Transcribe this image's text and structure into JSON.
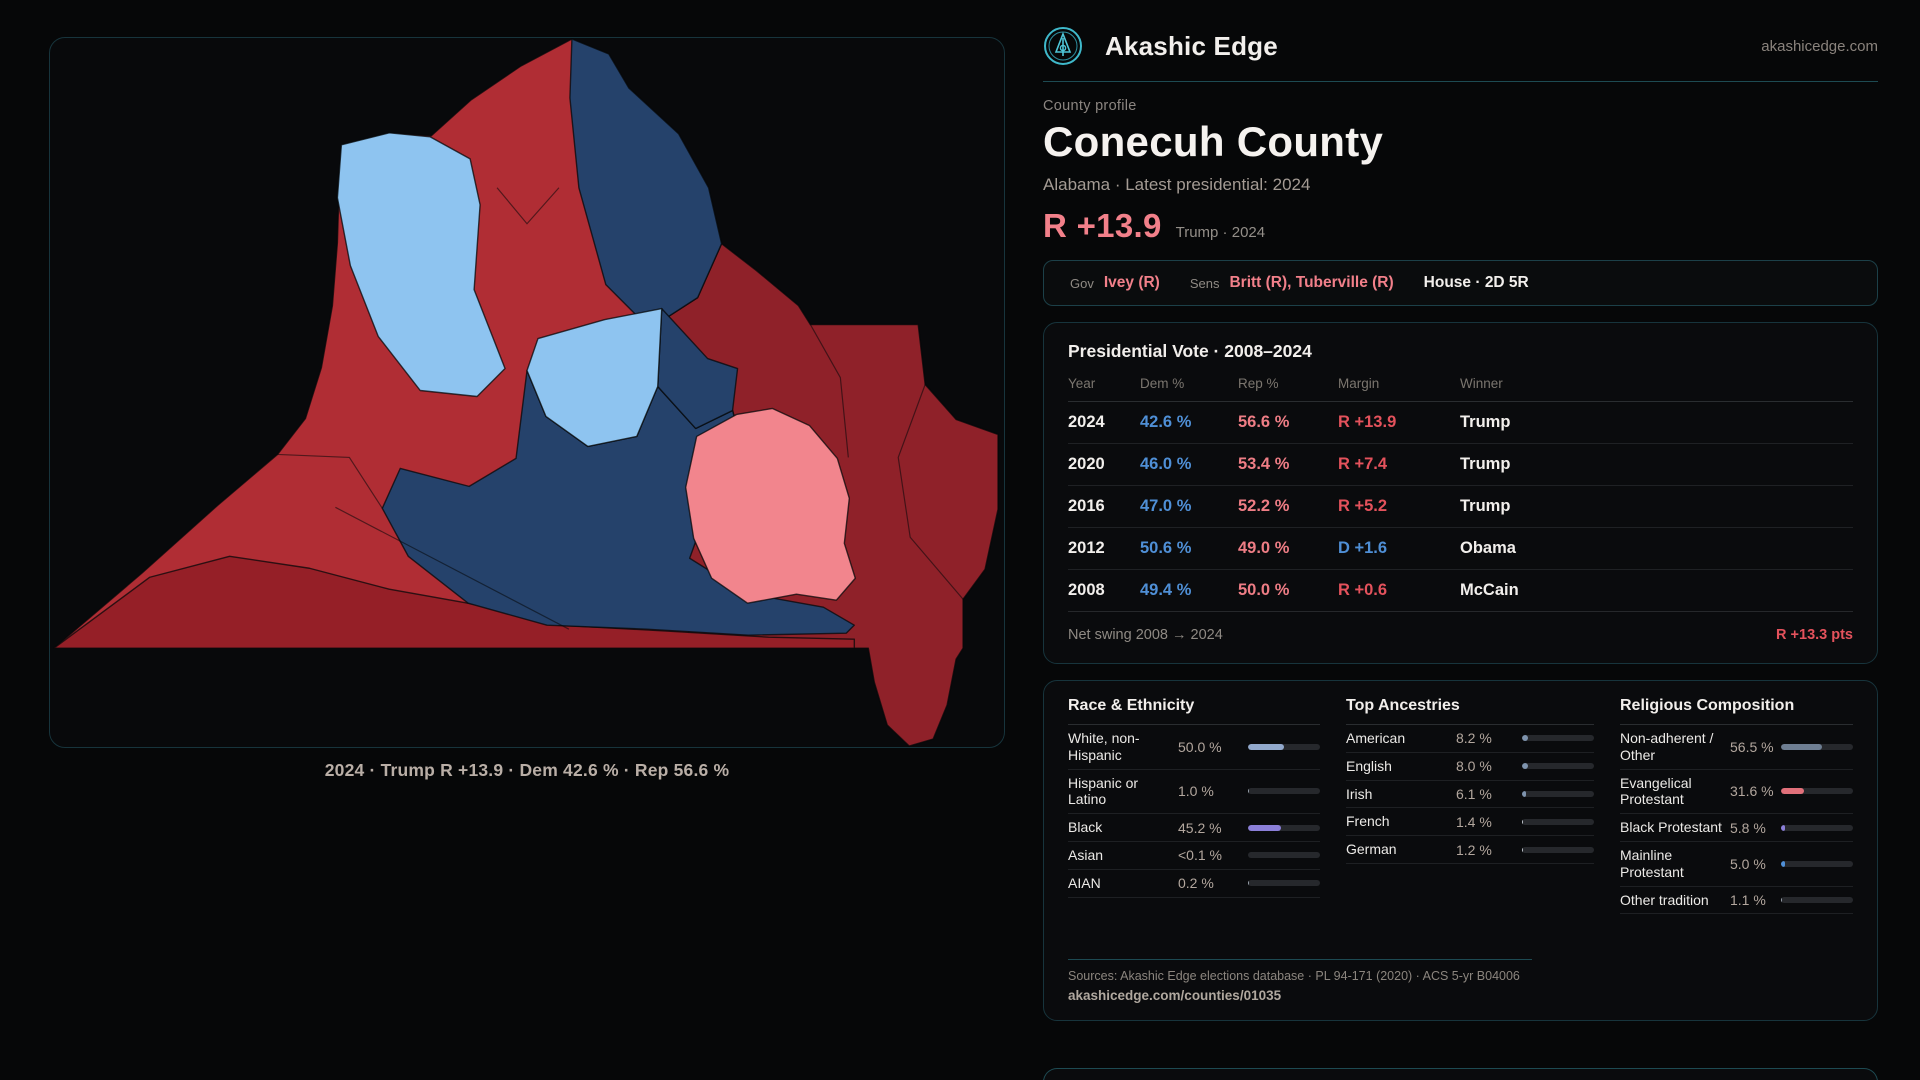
{
  "brand": {
    "name": "Akashic Edge",
    "domain": "akashicedge.com",
    "logo_color": "#49c0d4"
  },
  "profile": {
    "kicker": "County profile",
    "title": "Conecuh County",
    "subtitle": "Alabama · Latest presidential: 2024",
    "headline_margin": "R +13.9",
    "headline_context": "Trump · 2024"
  },
  "officials": {
    "gov_label": "Gov",
    "gov": "Ivey (R)",
    "sens_label": "Sens",
    "sens": "Britt (R), Tuberville (R)",
    "house": "House · 2D 5R"
  },
  "presidential": {
    "title": "Presidential Vote · 2008–2024",
    "columns": [
      "Year",
      "Dem %",
      "Rep %",
      "Margin",
      "Winner"
    ],
    "rows": [
      {
        "year": "2024",
        "dem": "42.6 %",
        "rep": "56.6 %",
        "margin": "R +13.9",
        "margin_party": "R",
        "winner": "Trump"
      },
      {
        "year": "2020",
        "dem": "46.0 %",
        "rep": "53.4 %",
        "margin": "R +7.4",
        "margin_party": "R",
        "winner": "Trump"
      },
      {
        "year": "2016",
        "dem": "47.0 %",
        "rep": "52.2 %",
        "margin": "R +5.2",
        "margin_party": "R",
        "winner": "Trump"
      },
      {
        "year": "2012",
        "dem": "50.6 %",
        "rep": "49.0 %",
        "margin": "D +1.6",
        "margin_party": "D",
        "winner": "Obama"
      },
      {
        "year": "2008",
        "dem": "49.4 %",
        "rep": "50.0 %",
        "margin": "R +0.6",
        "margin_party": "R",
        "winner": "McCain"
      }
    ],
    "net_swing_label": "Net swing 2008 → 2024",
    "net_swing_value": "R +13.3 pts"
  },
  "demographics": {
    "race": {
      "title": "Race & Ethnicity",
      "rows": [
        {
          "label": "White, non-Hispanic",
          "value": "50.0 %",
          "pct": 50.0,
          "color": "#92a9cc"
        },
        {
          "label": "Hispanic or Latino",
          "value": "1.0 %",
          "pct": 1.0,
          "color": "#9aa3ad"
        },
        {
          "label": "Black",
          "value": "45.2 %",
          "pct": 45.2,
          "color": "#8b7fd8"
        },
        {
          "label": "Asian",
          "value": "<0.1 %",
          "pct": 0,
          "color": "#9aa3ad"
        },
        {
          "label": "AIAN",
          "value": "0.2 %",
          "pct": 0.2,
          "color": "#9aa3ad"
        }
      ]
    },
    "ancestry": {
      "title": "Top Ancestries",
      "rows": [
        {
          "label": "American",
          "value": "8.2 %",
          "pct": 8.2,
          "color": "#7e93ad"
        },
        {
          "label": "English",
          "value": "8.0 %",
          "pct": 8.0,
          "color": "#7e93ad"
        },
        {
          "label": "Irish",
          "value": "6.1 %",
          "pct": 6.1,
          "color": "#7e93ad"
        },
        {
          "label": "French",
          "value": "1.4 %",
          "pct": 1.4,
          "color": "#c2c8cf"
        },
        {
          "label": "German",
          "value": "1.2 %",
          "pct": 1.2,
          "color": "#c2c8cf"
        }
      ]
    },
    "religion": {
      "title": "Religious Composition",
      "rows": [
        {
          "label": "Non-adherent / Other",
          "value": "56.5 %",
          "pct": 56.5,
          "color": "#6e7e92"
        },
        {
          "label": "Evangelical Protestant",
          "value": "31.6 %",
          "pct": 31.6,
          "color": "#e1707a"
        },
        {
          "label": "Black Protestant",
          "value": "5.8 %",
          "pct": 5.8,
          "color": "#8b7fd8"
        },
        {
          "label": "Mainline Protestant",
          "value": "5.0 %",
          "pct": 5.0,
          "color": "#4f8fd6"
        },
        {
          "label": "Other tradition",
          "value": "1.1 %",
          "pct": 1.1,
          "color": "#9aa3ad"
        }
      ]
    }
  },
  "sources": {
    "line1": "Sources: Akashic Edge elections database · PL 94-171 (2020) · ACS 5-yr B04006",
    "line2": "akashicedge.com/counties/01035"
  },
  "map": {
    "caption": "2024 · Trump R +13.9 · Dem 42.6 % · Rep 56.6 %",
    "highlighted_county": "Conecuh",
    "palette": {
      "red": "#b02d34",
      "dark_red": "#8f2129",
      "deep_red": "#951f27",
      "navy": "#25426b",
      "light_blue": "#8ec4f0",
      "pink": "#f2858d"
    }
  }
}
